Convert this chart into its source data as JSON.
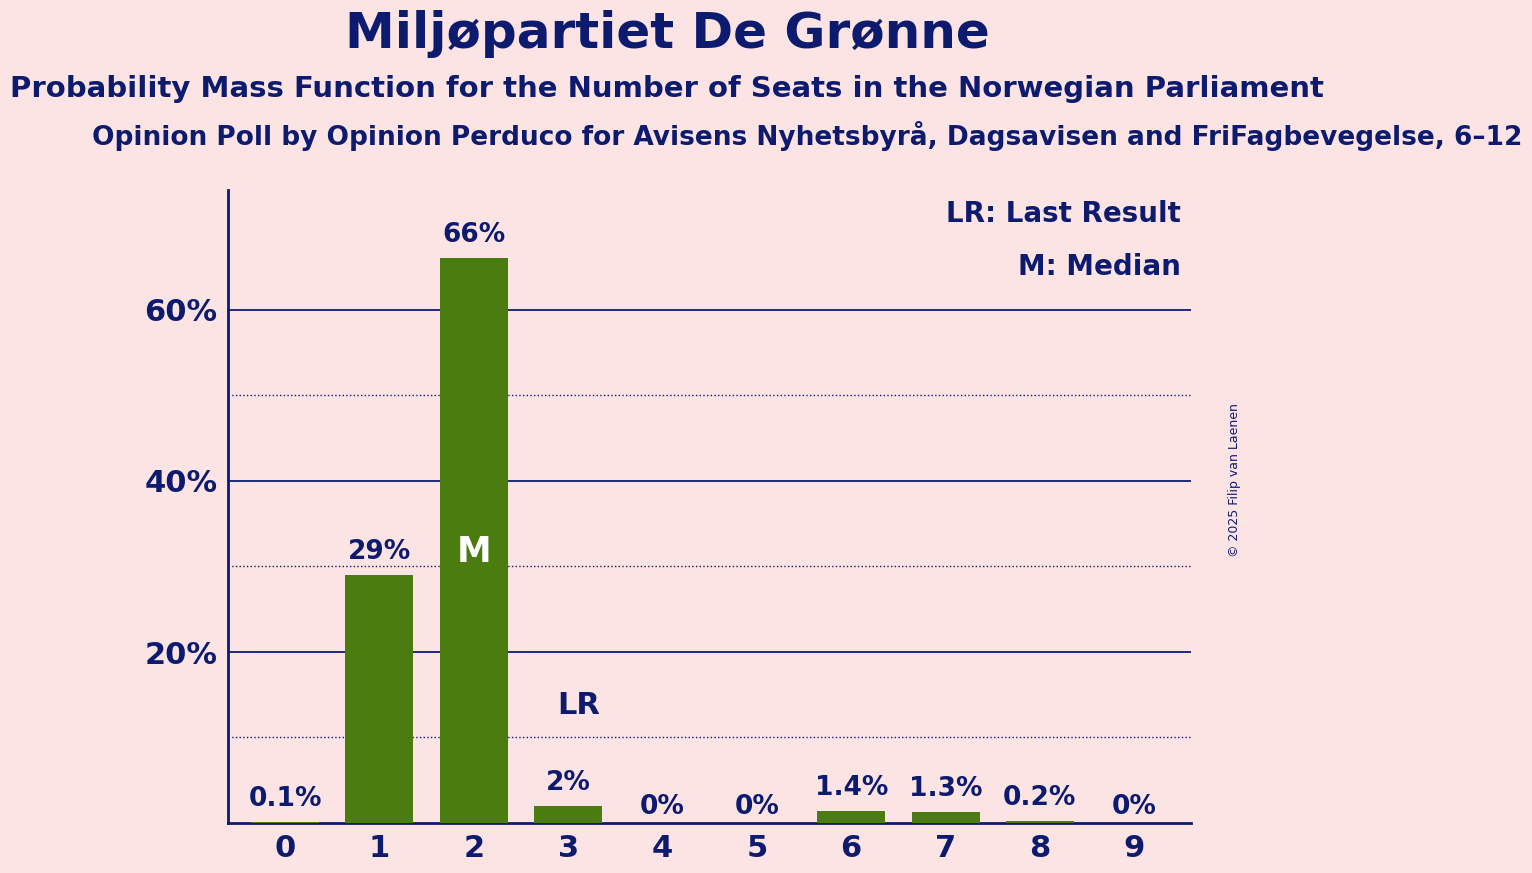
{
  "title": "Miljøpartiet De Grønne",
  "subtitle": "Probability Mass Function for the Number of Seats in the Norwegian Parliament",
  "source_line": "Opinion Poll by Opinion Perduco for Avisens Nyhetsbyrå, Dagsavisen and FriFagbevegelse, 6–12",
  "copyright": "© 2025 Filip van Laenen",
  "categories": [
    0,
    1,
    2,
    3,
    4,
    5,
    6,
    7,
    8,
    9
  ],
  "values": [
    0.001,
    0.29,
    0.66,
    0.02,
    0.0,
    0.0,
    0.014,
    0.013,
    0.002,
    0.0
  ],
  "bar_labels": [
    "0.1%",
    "29%",
    "66%",
    "2%",
    "0%",
    "0%",
    "1.4%",
    "1.3%",
    "0.2%",
    "0%"
  ],
  "bar_color": "#4a7c10",
  "background_color": "#fce4e4",
  "text_color": "#0d1b6e",
  "median_bar": 2,
  "lr_bar": 3,
  "ylim": [
    0,
    0.74
  ],
  "yticks": [
    0.0,
    0.2,
    0.4,
    0.6
  ],
  "ytick_labels": [
    "",
    "20%",
    "40%",
    "60%"
  ],
  "dotted_yticks": [
    0.1,
    0.3,
    0.5
  ],
  "legend_lr": "LR: Last Result",
  "legend_m": "M: Median",
  "title_fontsize": 36,
  "subtitle_fontsize": 21,
  "source_fontsize": 19,
  "bar_label_fontsize": 19,
  "axis_label_fontsize": 22,
  "legend_fontsize": 20,
  "copyright_fontsize": 9
}
